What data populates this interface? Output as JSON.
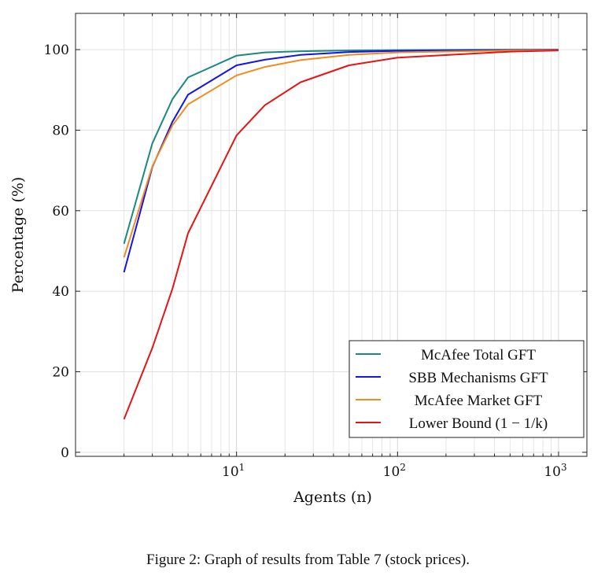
{
  "caption": "Figure 2: Graph of results from Table 7 (stock prices).",
  "chart_data": {
    "type": "line",
    "xlabel": "Agents (n)",
    "ylabel": "Percentage (%)",
    "x_scale": "log",
    "xlim": [
      1,
      1500
    ],
    "ylim": [
      -1,
      109
    ],
    "x_ticks": [
      10,
      100,
      1000
    ],
    "x_tick_labels": [
      {
        "base": "10",
        "exp": "1"
      },
      {
        "base": "10",
        "exp": "2"
      },
      {
        "base": "10",
        "exp": "3"
      }
    ],
    "y_ticks": [
      0,
      20,
      40,
      60,
      80,
      100
    ],
    "grid": true,
    "legend_position": "bottom-right",
    "x": [
      2,
      3,
      4,
      5,
      10,
      15,
      25,
      50,
      100,
      500,
      1000
    ],
    "series": [
      {
        "name": "McAfee Total GFT",
        "color": "#1a8a80",
        "values": [
          51.8,
          76.7,
          87.7,
          93.1,
          98.5,
          99.3,
          99.6,
          99.8,
          99.9,
          100.0,
          100.0
        ]
      },
      {
        "name": "SBB Mechanisms GFT",
        "color": "#1414e6",
        "values": [
          44.7,
          70.8,
          82.1,
          88.8,
          96.1,
          97.5,
          98.7,
          99.4,
          99.7,
          99.9,
          100.0
        ]
      },
      {
        "name": "McAfee Market GFT",
        "color": "#f08c1e",
        "values": [
          48.4,
          71.0,
          81.2,
          86.4,
          93.6,
          95.7,
          97.4,
          98.7,
          99.3,
          99.8,
          99.9
        ]
      },
      {
        "name": "Lower Bound (1 − 1/k)",
        "color": "#e61414",
        "values": [
          8.2,
          25.9,
          40.6,
          54.4,
          78.7,
          86.2,
          91.9,
          96.1,
          98.0,
          99.5,
          99.8
        ]
      }
    ]
  }
}
